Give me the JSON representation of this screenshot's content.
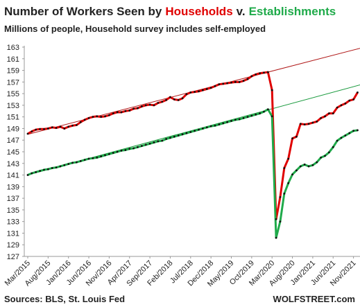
{
  "chart_data": {
    "type": "line",
    "title": {
      "prefix": "Number of Workers Seen by",
      "joiner": "v."
    },
    "subtitle": "Millions of people, Household survey includes self-employed",
    "source": "Sources: BLS, St. Louis Fed",
    "brand": "WOLFSTREET.com",
    "grid": false,
    "ylim": [
      127,
      163
    ],
    "yticks": [
      127,
      129,
      131,
      133,
      135,
      137,
      139,
      141,
      143,
      145,
      147,
      149,
      151,
      153,
      155,
      157,
      159,
      161,
      163
    ],
    "categories": [
      "Mar/2015",
      null,
      null,
      null,
      null,
      "Aug/2015",
      null,
      null,
      null,
      null,
      "Jan/2016",
      null,
      null,
      null,
      null,
      "Jun/2016",
      null,
      null,
      null,
      null,
      "Nov/2016",
      null,
      null,
      null,
      null,
      "Apr/2017",
      null,
      null,
      null,
      null,
      "Sep/2017",
      null,
      null,
      null,
      null,
      "Feb/2018",
      null,
      null,
      null,
      null,
      "Jul/2018",
      null,
      null,
      null,
      null,
      "Dec/2018",
      null,
      null,
      null,
      null,
      "May/2019",
      null,
      null,
      null,
      null,
      "Oct/2019",
      null,
      null,
      null,
      null,
      "Mar/2020",
      null,
      null,
      null,
      null,
      "Aug/2020",
      null,
      null,
      null,
      null,
      "Jan/2021",
      null,
      null,
      null,
      null,
      "Jun/2021",
      null,
      null,
      null,
      null,
      "Nov/2021",
      null
    ],
    "series": [
      {
        "name": "Households",
        "color": "#e00000",
        "trend_color": "#b01818",
        "trend": [
          148.0,
          162.8
        ],
        "values": [
          148.1,
          148.5,
          148.8,
          148.9,
          148.9,
          149.0,
          149.2,
          149.1,
          149.3,
          149.0,
          149.3,
          149.5,
          149.6,
          150.1,
          150.5,
          150.8,
          151.0,
          151.1,
          151.0,
          151.1,
          151.3,
          151.6,
          151.8,
          151.8,
          152.0,
          152.1,
          152.4,
          152.5,
          152.8,
          153.0,
          153.1,
          153.0,
          153.4,
          153.6,
          153.9,
          154.4,
          154.0,
          153.9,
          154.2,
          154.9,
          155.2,
          155.3,
          155.4,
          155.6,
          155.8,
          156.0,
          156.3,
          156.6,
          156.7,
          156.8,
          156.9,
          157.0,
          157.0,
          157.2,
          157.5,
          158.0,
          158.3,
          158.5,
          158.6,
          158.7,
          155.6,
          133.4,
          137.2,
          142.2,
          143.8,
          147.3,
          147.6,
          149.8,
          149.7,
          149.8,
          150.0,
          150.2,
          150.8,
          151.1,
          151.6,
          151.6,
          152.6,
          153.0,
          153.3,
          153.8,
          154.0,
          155.2
        ]
      },
      {
        "name": "Establishments",
        "color": "#1faa4a",
        "trend_color": "#1a9a3e",
        "trend": [
          141.0,
          156.5
        ],
        "values": [
          141.0,
          141.3,
          141.5,
          141.7,
          141.9,
          142.0,
          142.2,
          142.3,
          142.5,
          142.7,
          142.9,
          143.1,
          143.2,
          143.4,
          143.6,
          143.8,
          143.9,
          144.0,
          144.2,
          144.4,
          144.6,
          144.8,
          145.0,
          145.2,
          145.3,
          145.5,
          145.6,
          145.8,
          146.0,
          146.2,
          146.4,
          146.6,
          146.8,
          146.9,
          147.2,
          147.4,
          147.6,
          147.8,
          148.0,
          148.2,
          148.4,
          148.6,
          148.8,
          149.0,
          149.2,
          149.4,
          149.5,
          149.7,
          149.9,
          150.1,
          150.3,
          150.5,
          150.6,
          150.8,
          151.0,
          151.2,
          151.4,
          151.6,
          151.9,
          152.3,
          151.1,
          130.2,
          133.0,
          137.8,
          139.6,
          141.1,
          141.8,
          142.5,
          142.8,
          142.5,
          142.7,
          143.2,
          144.0,
          144.3,
          144.9,
          145.8,
          146.9,
          147.4,
          147.8,
          148.2,
          148.6,
          148.7
        ]
      }
    ]
  }
}
